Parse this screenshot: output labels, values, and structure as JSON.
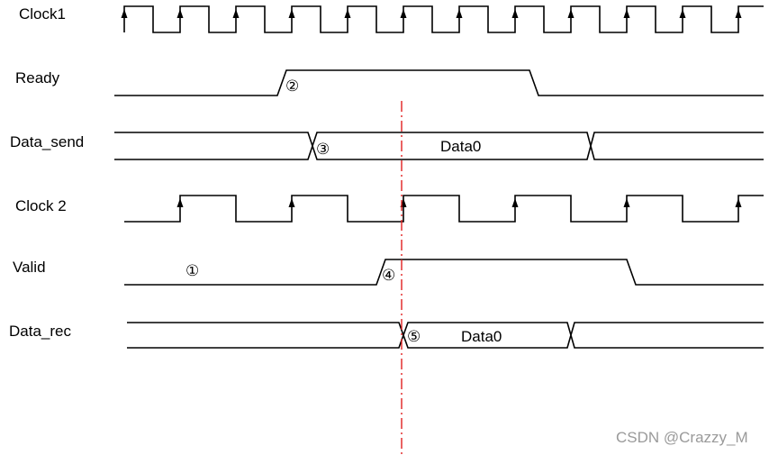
{
  "signals": [
    {
      "id": "clock1",
      "label": "Clock1",
      "type": "clock",
      "arrow_on_rise": true
    },
    {
      "id": "ready",
      "label": "Ready",
      "type": "level"
    },
    {
      "id": "data_send",
      "label": "Data_send",
      "type": "bus",
      "value": "Data0"
    },
    {
      "id": "clock2",
      "label": "Clock 2",
      "type": "clock",
      "arrow_on_rise": true
    },
    {
      "id": "valid",
      "label": "Valid",
      "type": "level"
    },
    {
      "id": "data_rec",
      "label": "Data_rec",
      "type": "bus",
      "value": "Data0"
    }
  ],
  "markers": [
    "①",
    "②",
    "③",
    "④",
    "⑤"
  ],
  "watermark": "CSDN @Crazzy_M",
  "colors": {
    "wave": "#000000",
    "cursor": "#e02020",
    "watermark": "#9a9a9a"
  }
}
